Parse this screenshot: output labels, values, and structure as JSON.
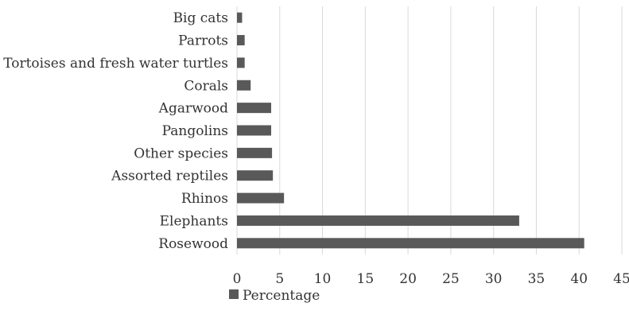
{
  "chart_data": {
    "type": "bar",
    "orientation": "horizontal",
    "title": "",
    "xlabel": "",
    "ylabel": "",
    "categories": [
      "Rosewood",
      "Elephants",
      "Rhinos",
      "Assorted reptiles",
      "Other species",
      "Pangolins",
      "Agarwood",
      "Corals",
      "Tortoises and fresh water turtles",
      "Parrots",
      "Big cats"
    ],
    "series": [
      {
        "name": "Percentage",
        "color": "#595959",
        "values": [
          40.6,
          33.0,
          5.5,
          4.2,
          4.1,
          4.0,
          4.0,
          1.6,
          0.9,
          0.9,
          0.6
        ]
      }
    ],
    "xlim": [
      0,
      45
    ],
    "xticks": [
      "0",
      "5",
      "10",
      "15",
      "20",
      "25",
      "30",
      "35",
      "40",
      "45"
    ],
    "grid": "vertical",
    "gridColor": "#d9d9d9",
    "legend": "bottom-left",
    "legendItems": [
      "Percentage"
    ]
  }
}
